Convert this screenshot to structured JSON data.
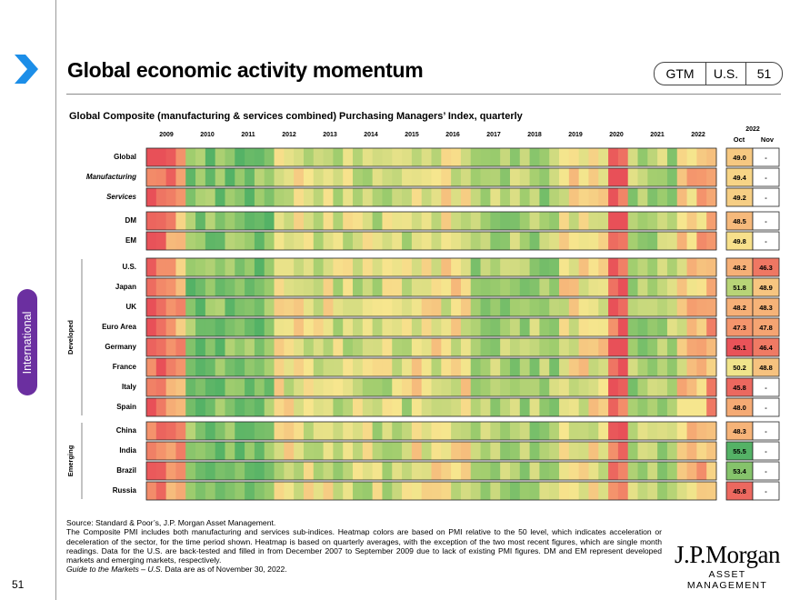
{
  "header": {
    "title": "Global economic activity momentum",
    "nav": [
      "GTM",
      "U.S.",
      "51"
    ],
    "side_tab": "International",
    "page_number": "51"
  },
  "chart_data": {
    "type": "heatmap",
    "title": "Global Composite (manufacturing & services combined) Purchasing Managers’ Index, quarterly",
    "x_years": [
      "2009",
      "2010",
      "2011",
      "2012",
      "2013",
      "2014",
      "2015",
      "2016",
      "2017",
      "2018",
      "2019",
      "2020",
      "2021",
      "2022"
    ],
    "recent_header": {
      "year": "2022",
      "columns": [
        "Oct",
        "Nov"
      ]
    },
    "groups": [
      {
        "label": "",
        "rows": [
          "Global",
          "Manufacturing",
          "Services"
        ]
      },
      {
        "label": "",
        "rows": [
          "DM",
          "EM"
        ]
      },
      {
        "label": "Developed",
        "rows": [
          "U.S.",
          "Japan",
          "UK",
          "Euro Area",
          "Germany",
          "France",
          "Italy",
          "Spain"
        ]
      },
      {
        "label": "Emerging",
        "rows": [
          "China",
          "India",
          "Brazil",
          "Russia"
        ]
      }
    ],
    "italic_rows": [
      "Manufacturing",
      "Services"
    ],
    "recent": {
      "Global": [
        "49.0",
        "-"
      ],
      "Manufacturing": [
        "49.4",
        "-"
      ],
      "Services": [
        "49.2",
        "-"
      ],
      "DM": [
        "48.5",
        "-"
      ],
      "EM": [
        "49.8",
        "-"
      ],
      "U.S.": [
        "48.2",
        "46.3"
      ],
      "Japan": [
        "51.8",
        "48.9"
      ],
      "UK": [
        "48.2",
        "48.3"
      ],
      "Euro Area": [
        "47.3",
        "47.8"
      ],
      "Germany": [
        "45.1",
        "46.4"
      ],
      "France": [
        "50.2",
        "48.8"
      ],
      "Italy": [
        "45.8",
        "-"
      ],
      "Spain": [
        "48.0",
        "-"
      ],
      "China": [
        "48.3",
        "-"
      ],
      "India": [
        "55.5",
        "-"
      ],
      "Brazil": [
        "53.4",
        "-"
      ],
      "Russia": [
        "45.8",
        "-"
      ]
    },
    "color_scale": {
      "low": "#ef5a5a",
      "mid": "#f7e68e",
      "high": "#5cb86b"
    }
  },
  "footer": {
    "source": "Source: Standard & Poor’s, J.P. Morgan Asset Management.",
    "note": "The Composite PMI includes both manufacturing and services sub-indices. Heatmap colors are based on PMI relative to the 50 level, which indicates acceleration or deceleration of the sector, for the time period shown. Heatmap is based on quarterly averages, with the exception of the two most recent figures, which are single month readings. Data for the U.S. are back-tested and filled in from December 2007 to September 2009 due to lack of existing PMI figures. DM and EM represent developed markets and emerging markets, respectively.",
    "guide_italic": "Guide to the Markets – U.S.",
    "guide_rest": " Data are as of November 30, 2022."
  },
  "logo": {
    "line1": "J.P.Morgan",
    "line2": "ASSET MANAGEMENT"
  }
}
